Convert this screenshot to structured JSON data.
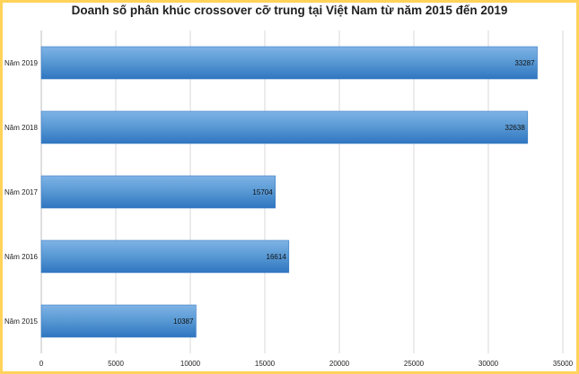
{
  "chart_data": {
    "type": "bar",
    "orientation": "horizontal",
    "title": "Doanh số phân khúc crossover cỡ trung tại Việt Nam từ năm 2015 đến 2019",
    "categories": [
      "Năm 2019",
      "Năm 2018",
      "Năm 2017",
      "Năm 2016",
      "Năm 2015"
    ],
    "values": [
      33287,
      32638,
      15704,
      16614,
      10387
    ],
    "value_labels": [
      "33287",
      "32638",
      "15704",
      "16614",
      "10387"
    ],
    "xlim": [
      0,
      35000
    ],
    "x_ticks": [
      0,
      5000,
      10000,
      15000,
      20000,
      25000,
      30000,
      35000
    ],
    "x_tick_labels": [
      "0",
      "5000",
      "10000",
      "15000",
      "20000",
      "25000",
      "30000",
      "35000"
    ],
    "gridlines": "vertical",
    "bar_color": "#5b9bd5",
    "bar_color_dark": "#2f75c0",
    "frame_color": "#ffd35a"
  }
}
